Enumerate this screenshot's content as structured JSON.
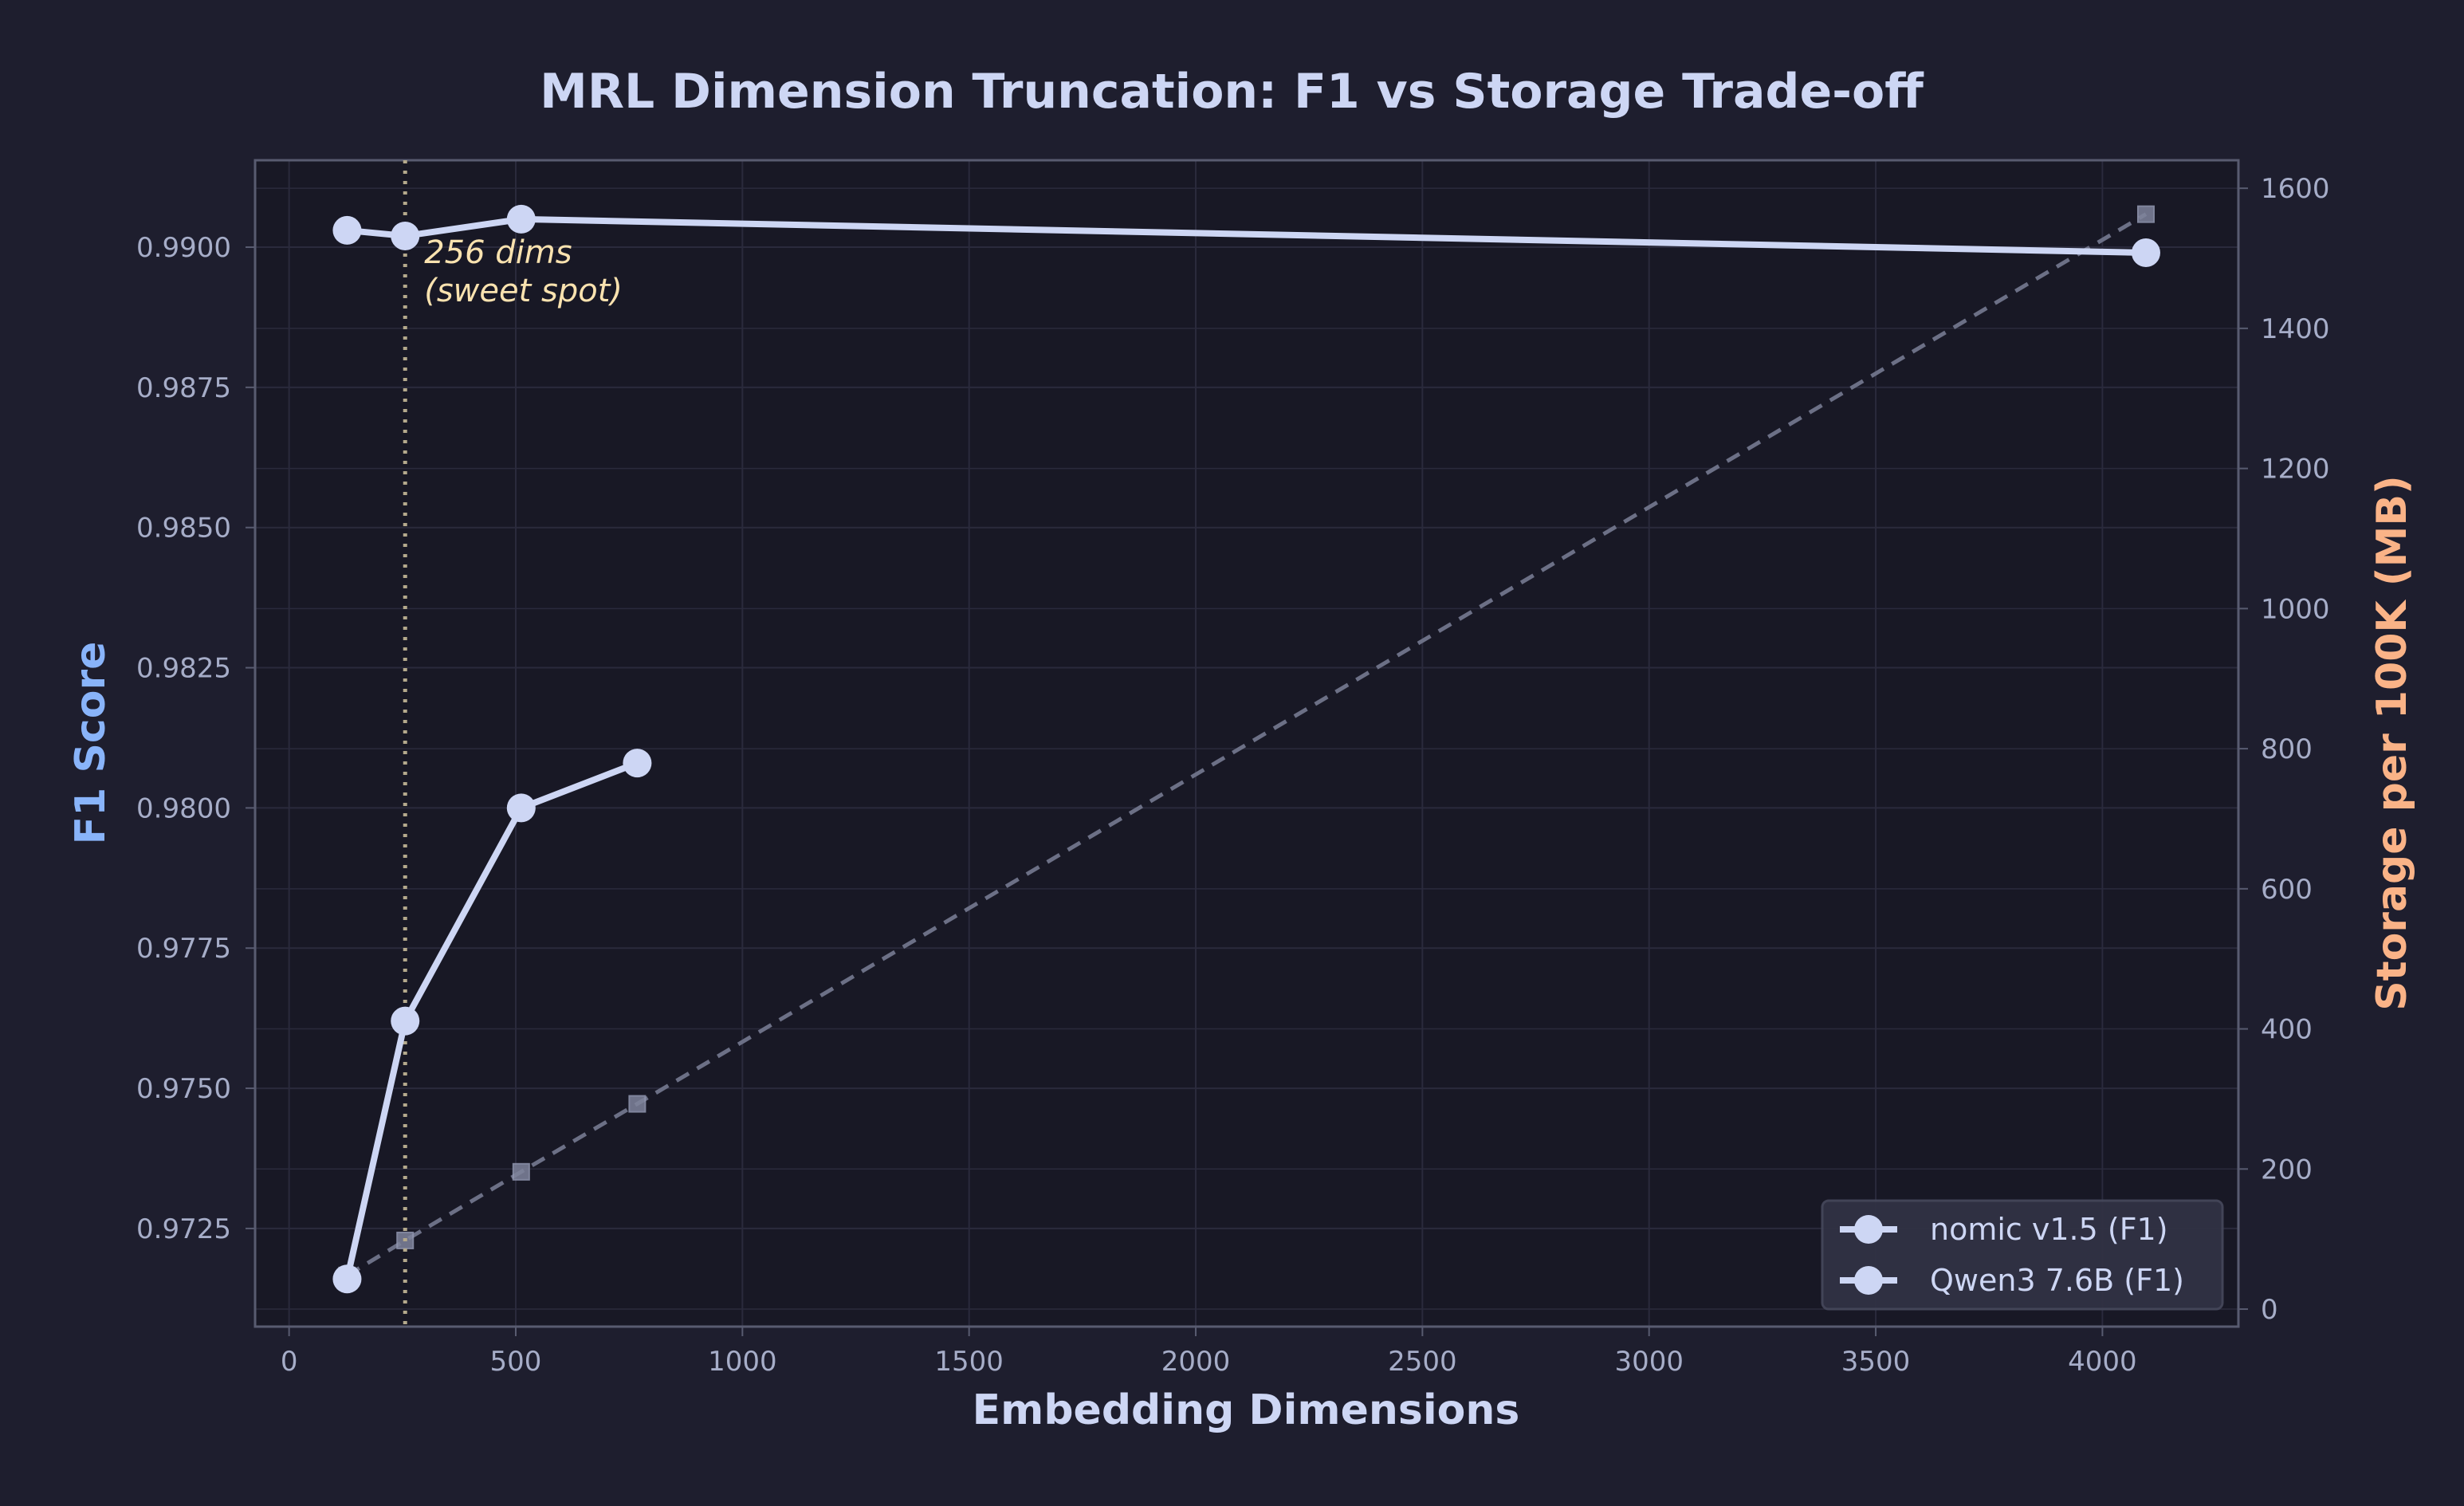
{
  "colors": {
    "background": "#1e1e2e",
    "plot_background": "#181825",
    "grid": "#2a2a3c",
    "spine": "#585b70",
    "tick_text": "#a6adc8",
    "title_text": "#cdd6f4",
    "left_axis_label": "#89b4fa",
    "right_axis_label": "#fab387",
    "series_line": "#cdd6f4",
    "storage_line": "#6c7086",
    "storage_marker": "#7f849c",
    "annotation_line": "#b4a98c",
    "annotation_text": "#f9e2af",
    "legend_bg": "#313244",
    "legend_border": "#45475a"
  },
  "chart_data": {
    "type": "line",
    "title": "MRL Dimension Truncation: F1 vs Storage Trade-off",
    "xlabel": "Embedding Dimensions",
    "ylabel": "F1 Score",
    "y2label": "Storage per 100K (MB)",
    "xlim": [
      -75,
      4300
    ],
    "ylim": [
      0.97075,
      0.99155
    ],
    "y2lim": [
      -25,
      1640
    ],
    "x_ticks": [
      0,
      500,
      1000,
      1500,
      2000,
      2500,
      3000,
      3500,
      4000
    ],
    "x_tick_labels": [
      "0",
      "500",
      "1000",
      "1500",
      "2000",
      "2500",
      "3000",
      "3500",
      "4000"
    ],
    "y_ticks": [
      0.9725,
      0.975,
      0.9775,
      0.98,
      0.9825,
      0.985,
      0.9875,
      0.99
    ],
    "y_tick_labels": [
      "0.9725",
      "0.9750",
      "0.9775",
      "0.9800",
      "0.9825",
      "0.9850",
      "0.9875",
      "0.9900"
    ],
    "y2_ticks": [
      0,
      200,
      400,
      600,
      800,
      1000,
      1200,
      1400,
      1600
    ],
    "y2_tick_labels": [
      "0",
      "200",
      "400",
      "600",
      "800",
      "1000",
      "1200",
      "1400",
      "1600"
    ],
    "grid": true,
    "legend_position": "lower-right",
    "series": [
      {
        "name": "nomic v1.5 (F1)",
        "axis": "left",
        "style": "solid-circle",
        "x": [
          128,
          256,
          512,
          768
        ],
        "y": [
          0.9716,
          0.9762,
          0.98,
          0.9808
        ]
      },
      {
        "name": "Qwen3 7.6B (F1)",
        "axis": "left",
        "style": "solid-circle",
        "x": [
          128,
          256,
          512,
          4096
        ],
        "y": [
          0.9903,
          0.9902,
          0.9905,
          0.9899
        ]
      },
      {
        "axis": "right",
        "style": "dashed-square",
        "x": [
          128,
          256,
          512,
          768,
          4096
        ],
        "y": [
          48,
          98,
          196,
          293,
          1563
        ]
      }
    ],
    "annotations": [
      {
        "type": "vline",
        "x": 256,
        "lines": [
          "256 dims",
          "(sweet spot)"
        ]
      }
    ]
  }
}
